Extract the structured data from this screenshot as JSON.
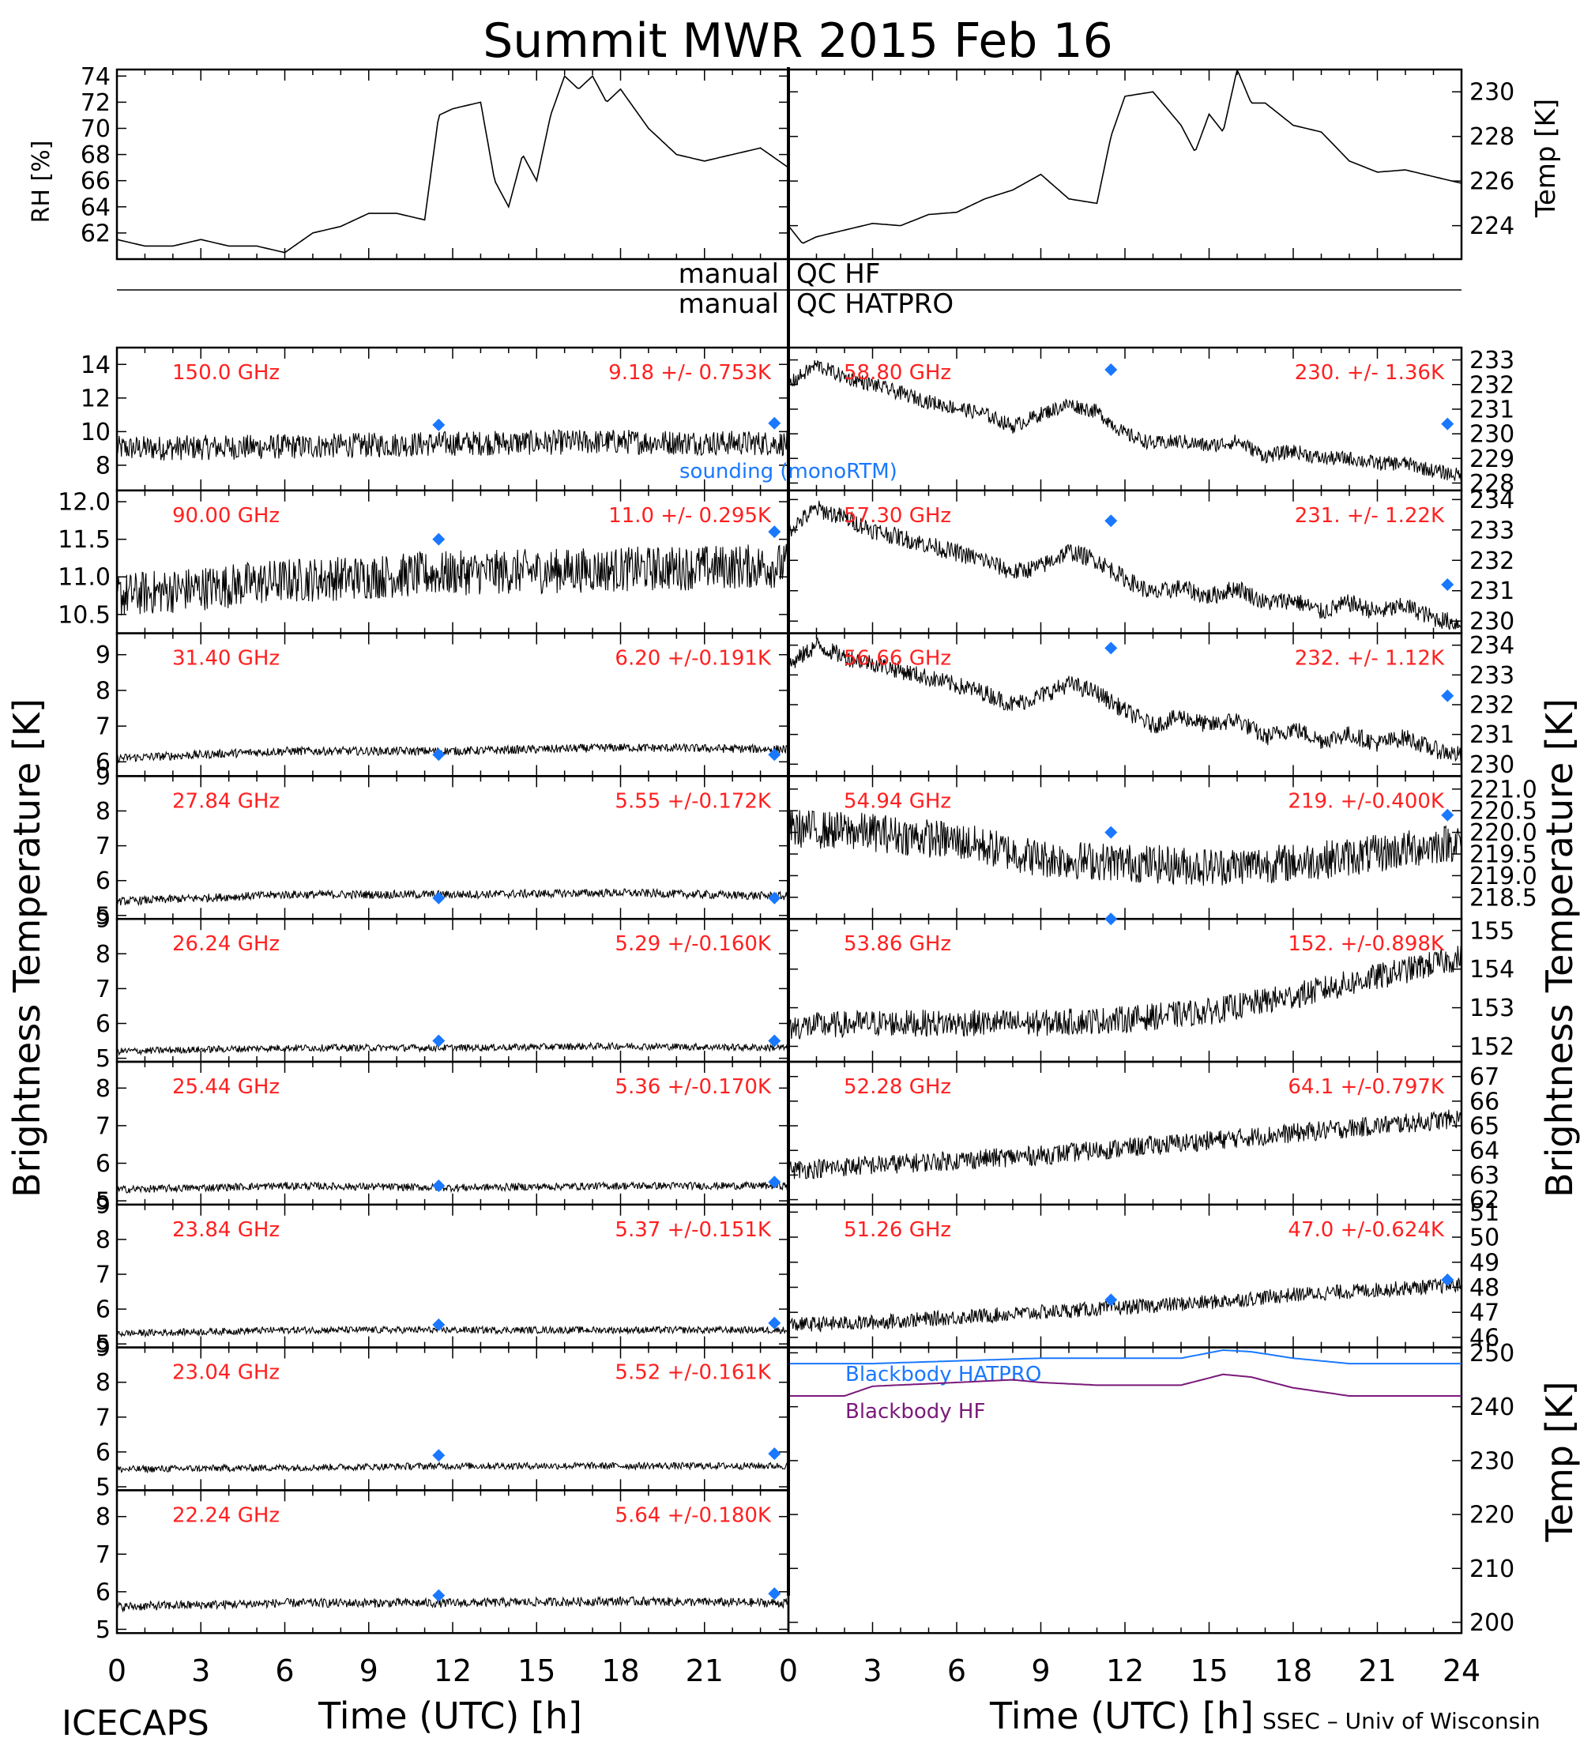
{
  "title": "Summit MWR 2015 Feb 16",
  "footer": {
    "left": "ICECAPS",
    "right": "SSEC – Univ of Wisconsin"
  },
  "xaxis": {
    "label": "Time (UTC) [h]",
    "ticks": [
      "0",
      "3",
      "6",
      "9",
      "12",
      "15",
      "18",
      "21",
      "24"
    ]
  },
  "ylabels": {
    "rh": "RH [%]",
    "temp": "Temp [K]",
    "tb": "Brightness Temperature [K]",
    "bb_temp": "Temp [K]"
  },
  "qc_labels": {
    "hf_left": "manual",
    "hf_right": "QC HF",
    "hatpro_left": "manual",
    "hatpro_right": "QC HATPRO"
  },
  "colors": {
    "trace": "#000000",
    "label": "#ff2020",
    "sounding": "#1a78ff",
    "bb_hatpro": "#1a78ff",
    "bb_hf": "#7a1a7a"
  },
  "chart_data": [
    {
      "type": "line",
      "id": "rh",
      "ylabel": "RH [%]",
      "ylim": [
        60,
        74.5
      ],
      "ticks": [
        "62",
        "64",
        "66",
        "68",
        "70",
        "72",
        "74"
      ],
      "x": [
        0,
        1,
        2,
        3,
        4,
        5,
        6,
        7,
        8,
        9,
        10,
        11,
        11.5,
        12,
        13,
        13.5,
        14,
        14.5,
        15,
        15.5,
        16,
        16.5,
        17,
        17.5,
        18,
        19,
        20,
        21,
        22,
        23,
        24
      ],
      "y": [
        61.5,
        61,
        61,
        61.5,
        61,
        61,
        60.5,
        62,
        62.5,
        63.5,
        63.5,
        63,
        71,
        71.5,
        72,
        66,
        64,
        68,
        66,
        71,
        74,
        73,
        74,
        72,
        73,
        70,
        68,
        67.5,
        68,
        68.5,
        67
      ]
    },
    {
      "type": "line",
      "id": "temp",
      "ylabel": "Temp [K]",
      "ylim": [
        222.5,
        231
      ],
      "ticks": [
        "224",
        "226",
        "228",
        "230"
      ],
      "x": [
        0,
        0.5,
        1,
        2,
        3,
        4,
        5,
        6,
        7,
        8,
        9,
        10,
        11,
        11.5,
        12,
        13,
        14,
        14.5,
        15,
        15.5,
        16,
        16.5,
        17,
        18,
        19,
        20,
        21,
        22,
        23,
        24
      ],
      "y": [
        224,
        223.2,
        223.5,
        223.8,
        224.1,
        224,
        224.5,
        224.6,
        225.2,
        225.6,
        226.3,
        225.2,
        225,
        228,
        229.8,
        230,
        228.5,
        227.3,
        229,
        228.2,
        231,
        229.5,
        229.5,
        228.5,
        228.2,
        226.9,
        226.4,
        226.5,
        226.2,
        225.9
      ]
    },
    {
      "type": "line",
      "id": "ch150",
      "freq": "150.0 GHz",
      "stats": "9.18 +/- 0.753K",
      "ylim": [
        6.5,
        15
      ],
      "ticks": [
        "8",
        "10",
        "12",
        "14"
      ],
      "noise": 0.75,
      "x": [
        0,
        6,
        12,
        18,
        24
      ],
      "y": [
        9,
        9.1,
        9.3,
        9.4,
        9.3
      ],
      "sounding": [
        [
          11.5,
          10.4
        ],
        [
          23.5,
          10.5
        ]
      ],
      "sounding_label": "sounding (monoRTM)"
    },
    {
      "type": "line",
      "id": "ch90",
      "freq": "90.00 GHz",
      "stats": "11.0 +/- 0.295K",
      "ylim": [
        10.25,
        12.15
      ],
      "ticks": [
        "10.5",
        "11.0",
        "11.5",
        "12.0"
      ],
      "noise": 0.3,
      "x": [
        0,
        6,
        12,
        18,
        24
      ],
      "y": [
        10.75,
        10.95,
        11.05,
        11.1,
        11.15
      ],
      "sounding": [
        [
          11.5,
          11.5
        ],
        [
          23.5,
          11.6
        ]
      ]
    },
    {
      "type": "line",
      "id": "ch31",
      "freq": "31.40 GHz",
      "stats": "6.20 +/-0.191K",
      "ylim": [
        5.6,
        9.6
      ],
      "ticks": [
        "6",
        "7",
        "8",
        "9"
      ],
      "noise": 0.12,
      "x": [
        0,
        6,
        12,
        18,
        24
      ],
      "y": [
        6.1,
        6.3,
        6.3,
        6.4,
        6.35
      ],
      "sounding": [
        [
          11.5,
          6.2
        ],
        [
          23.5,
          6.2
        ]
      ]
    },
    {
      "type": "line",
      "id": "ch2784",
      "freq": "27.84 GHz",
      "stats": "5.55 +/-0.172K",
      "ylim": [
        4.9,
        9
      ],
      "ticks": [
        "5",
        "6",
        "7",
        "8",
        "9"
      ],
      "noise": 0.12,
      "x": [
        0,
        6,
        12,
        18,
        24
      ],
      "y": [
        5.4,
        5.6,
        5.6,
        5.65,
        5.55
      ],
      "sounding": [
        [
          11.5,
          5.5
        ],
        [
          23.5,
          5.5
        ]
      ]
    },
    {
      "type": "line",
      "id": "ch2624",
      "freq": "26.24 GHz",
      "stats": "5.29 +/-0.160K",
      "ylim": [
        4.9,
        9
      ],
      "ticks": [
        "5",
        "6",
        "7",
        "8",
        "9"
      ],
      "noise": 0.1,
      "x": [
        0,
        6,
        12,
        18,
        24
      ],
      "y": [
        5.2,
        5.3,
        5.3,
        5.35,
        5.3
      ],
      "sounding": [
        [
          11.5,
          5.5
        ],
        [
          23.5,
          5.5
        ]
      ]
    },
    {
      "type": "line",
      "id": "ch2544",
      "freq": "25.44 GHz",
      "stats": "5.36 +/-0.170K",
      "ylim": [
        4.9,
        8.7
      ],
      "ticks": [
        "5",
        "6",
        "7",
        "8"
      ],
      "noise": 0.1,
      "x": [
        0,
        6,
        12,
        18,
        24
      ],
      "y": [
        5.3,
        5.4,
        5.35,
        5.4,
        5.4
      ],
      "sounding": [
        [
          11.5,
          5.4
        ],
        [
          23.5,
          5.5
        ]
      ]
    },
    {
      "type": "line",
      "id": "ch2384",
      "freq": "23.84 GHz",
      "stats": "5.37 +/-0.151K",
      "ylim": [
        4.9,
        9
      ],
      "ticks": [
        "5",
        "6",
        "7",
        "8",
        "9"
      ],
      "noise": 0.1,
      "x": [
        0,
        6,
        12,
        18,
        24
      ],
      "y": [
        5.3,
        5.4,
        5.4,
        5.4,
        5.4
      ],
      "sounding": [
        [
          11.5,
          5.55
        ],
        [
          23.5,
          5.6
        ]
      ]
    },
    {
      "type": "line",
      "id": "ch2304",
      "freq": "23.04 GHz",
      "stats": "5.52 +/-0.161K",
      "ylim": [
        4.9,
        9
      ],
      "ticks": [
        "5",
        "6",
        "7",
        "8",
        "9"
      ],
      "noise": 0.1,
      "x": [
        0,
        6,
        12,
        18,
        24
      ],
      "y": [
        5.5,
        5.55,
        5.6,
        5.6,
        5.6
      ],
      "sounding": [
        [
          11.5,
          5.9
        ],
        [
          23.5,
          5.95
        ]
      ]
    },
    {
      "type": "line",
      "id": "ch2224",
      "freq": "22.24 GHz",
      "stats": "5.64 +/-0.180K",
      "ylim": [
        4.9,
        8.7
      ],
      "ticks": [
        "5",
        "6",
        "7",
        "8"
      ],
      "noise": 0.12,
      "x": [
        0,
        6,
        12,
        18,
        24
      ],
      "y": [
        5.6,
        5.7,
        5.7,
        5.75,
        5.7
      ],
      "sounding": [
        [
          11.5,
          5.9
        ],
        [
          23.5,
          5.95
        ]
      ]
    },
    {
      "type": "line",
      "id": "ch5874",
      "freq": "58.80 GHz",
      "stats": "230. +/- 1.36K",
      "ylim": [
        227.7,
        233.5
      ],
      "ticks": [
        "228",
        "229",
        "230",
        "231",
        "232",
        "233"
      ],
      "noise": 0.3,
      "x": [
        0,
        1,
        2,
        3,
        5,
        7,
        8,
        9,
        10,
        11,
        12,
        13,
        14,
        15,
        16,
        17,
        18,
        19,
        20,
        21,
        22,
        23,
        24
      ],
      "y": [
        232,
        232.8,
        232.3,
        232,
        231.3,
        230.8,
        230.3,
        230.8,
        231.2,
        230.9,
        230,
        229.6,
        229.7,
        229.5,
        229.7,
        229.1,
        229.3,
        229,
        229,
        228.8,
        228.8,
        228.5,
        228.3
      ],
      "sounding": [
        [
          11.5,
          232.6
        ],
        [
          23.5,
          230.4
        ]
      ]
    },
    {
      "type": "line",
      "id": "ch5730",
      "freq": "57.30 GHz",
      "stats": "231. +/- 1.22K",
      "ylim": [
        229.6,
        234.3
      ],
      "ticks": [
        "230",
        "231",
        "232",
        "233",
        "234"
      ],
      "noise": 0.3,
      "x": [
        0,
        1,
        2,
        3,
        5,
        7,
        8,
        9,
        10,
        11,
        12,
        13,
        14,
        15,
        16,
        17,
        18,
        19,
        20,
        21,
        22,
        23,
        24
      ],
      "y": [
        233,
        233.7,
        233.4,
        233,
        232.5,
        232,
        231.6,
        231.8,
        232.3,
        232,
        231.4,
        230.9,
        231.1,
        230.8,
        231.1,
        230.6,
        230.7,
        230.3,
        230.6,
        230.3,
        230.5,
        230.1,
        229.9
      ],
      "sounding": [
        [
          11.5,
          233.3
        ],
        [
          23.5,
          231.2
        ]
      ]
    },
    {
      "type": "line",
      "id": "ch5666",
      "freq": "56.66 GHz",
      "stats": "232. +/- 1.12K",
      "ylim": [
        229.6,
        234.4
      ],
      "ticks": [
        "230",
        "231",
        "232",
        "233",
        "234"
      ],
      "noise": 0.3,
      "x": [
        0,
        1,
        2,
        3,
        5,
        7,
        8,
        9,
        10,
        11,
        12,
        13,
        14,
        15,
        16,
        17,
        18,
        19,
        20,
        21,
        22,
        23,
        24
      ],
      "y": [
        233.3,
        234,
        233.6,
        233.4,
        232.9,
        232.4,
        232,
        232.3,
        232.7,
        232.4,
        231.8,
        231.3,
        231.6,
        231.3,
        231.5,
        230.9,
        231.2,
        230.8,
        231,
        230.7,
        230.9,
        230.5,
        230.3
      ],
      "sounding": [
        [
          11.5,
          233.9
        ],
        [
          23.5,
          232.3
        ]
      ]
    },
    {
      "type": "line",
      "id": "ch5494",
      "freq": "54.94 GHz",
      "stats": "219. +/-0.400K",
      "ylim": [
        218,
        221.3
      ],
      "ticks": [
        "218.5",
        "219.0",
        "219.5",
        "220.0",
        "220.5",
        "221.0"
      ],
      "noise": 0.45,
      "x": [
        0,
        3,
        6,
        9,
        12,
        15,
        18,
        21,
        24
      ],
      "y": [
        220.1,
        220,
        219.8,
        219.4,
        219.3,
        219.2,
        219.3,
        219.5,
        219.8
      ],
      "sounding": [
        [
          11.5,
          220
        ],
        [
          23.5,
          220.4
        ]
      ]
    },
    {
      "type": "line",
      "id": "ch5386",
      "freq": "53.86 GHz",
      "stats": "152. +/-0.898K",
      "ylim": [
        151.6,
        155.3
      ],
      "ticks": [
        "152",
        "153",
        "154",
        "155"
      ],
      "noise": 0.35,
      "x": [
        0,
        3,
        6,
        9,
        12,
        15,
        18,
        21,
        24
      ],
      "y": [
        152.5,
        152.6,
        152.6,
        152.6,
        152.7,
        152.9,
        153.3,
        153.8,
        154.3
      ],
      "sounding": [
        [
          11.5,
          155.3
        ]
      ]
    },
    {
      "type": "line",
      "id": "ch5228",
      "freq": "52.28 GHz",
      "stats": "64.1 +/-0.797K",
      "ylim": [
        61.8,
        67.6
      ],
      "ticks": [
        "62",
        "63",
        "64",
        "65",
        "66",
        "67"
      ],
      "noise": 0.4,
      "x": [
        0,
        3,
        6,
        9,
        12,
        15,
        18,
        21,
        24
      ],
      "y": [
        63.2,
        63.4,
        63.6,
        63.8,
        64.1,
        64.4,
        64.7,
        65,
        65.3
      ]
    },
    {
      "type": "line",
      "id": "ch5126",
      "freq": "51.26 GHz",
      "stats": "47.0 +/-0.624K",
      "ylim": [
        45.6,
        51.3
      ],
      "ticks": [
        "46",
        "47",
        "48",
        "49",
        "50",
        "51"
      ],
      "noise": 0.3,
      "x": [
        0,
        3,
        6,
        9,
        12,
        15,
        18,
        21,
        24
      ],
      "y": [
        46.5,
        46.6,
        46.8,
        47,
        47.2,
        47.4,
        47.7,
        47.9,
        48.1
      ],
      "sounding": [
        [
          11.5,
          47.5
        ],
        [
          23.5,
          48.3
        ]
      ]
    },
    {
      "type": "line",
      "id": "blackbody",
      "ylabel": "Temp [K]",
      "ylim": [
        198,
        251
      ],
      "ticks": [
        "200",
        "210",
        "220",
        "230",
        "240",
        "250"
      ],
      "series": [
        {
          "name": "Blackbody HATPRO",
          "color": "#1a78ff",
          "x": [
            0,
            3,
            6,
            9,
            12,
            14,
            15.5,
            16.5,
            18,
            20,
            22,
            24
          ],
          "y": [
            248,
            248,
            248.5,
            249,
            249,
            249,
            250.5,
            250.2,
            249,
            248,
            248,
            248
          ]
        },
        {
          "name": "Blackbody HF",
          "color": "#7a1a7a",
          "x": [
            0,
            2,
            3,
            6,
            8,
            9,
            11,
            14,
            15.5,
            16.5,
            18,
            20,
            22,
            24
          ],
          "y": [
            242,
            242,
            243.8,
            244.5,
            245,
            244.5,
            244,
            244,
            246,
            245.5,
            243.5,
            242,
            242,
            242
          ]
        }
      ]
    }
  ]
}
